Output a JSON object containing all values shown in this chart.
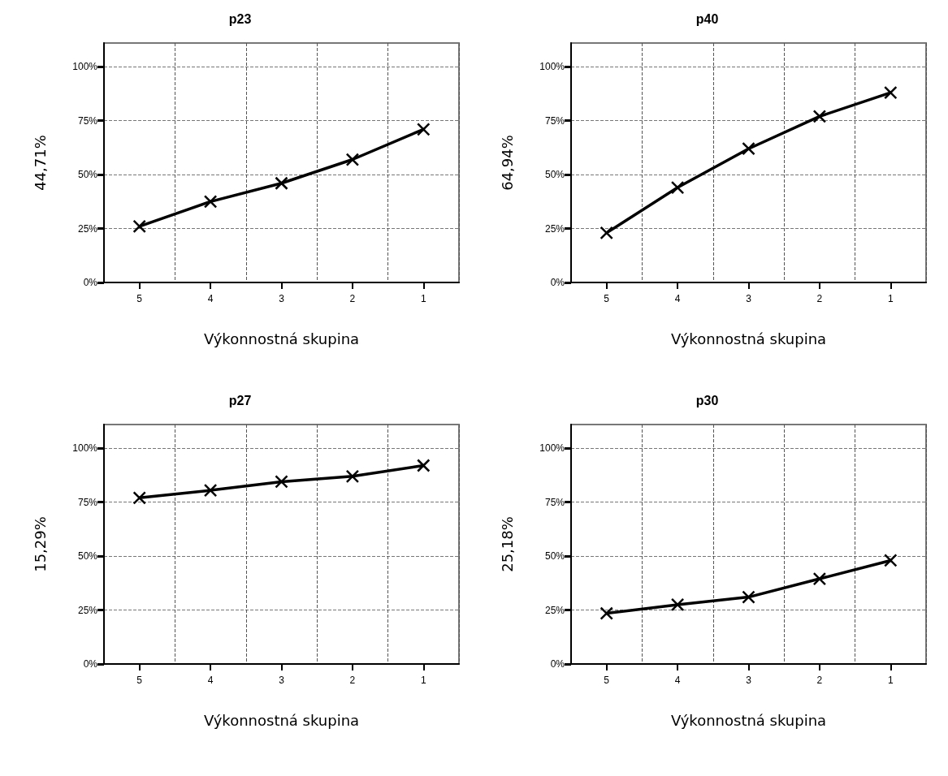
{
  "chart_data": [
    {
      "type": "line",
      "title": "p23",
      "xlabel": "Výkonnostná skupina",
      "ylabel": "44,71%",
      "categories": [
        "5",
        "4",
        "3",
        "2",
        "1"
      ],
      "series": [
        {
          "color": "#000000",
          "values": [
            26,
            37.5,
            46,
            57,
            71
          ]
        }
      ],
      "ylim": [
        0,
        111
      ],
      "yticks": [
        {
          "value": 0,
          "label": "0%"
        },
        {
          "value": 25,
          "label": "25%"
        },
        {
          "value": 50,
          "label": "50%"
        },
        {
          "value": 75,
          "label": "75%"
        },
        {
          "value": 100,
          "label": "100%"
        }
      ],
      "grid": true,
      "marker": "cross",
      "line_style": "solid"
    },
    {
      "type": "line",
      "title": "p40",
      "xlabel": "Výkonnostná skupina",
      "ylabel": "64,94%",
      "categories": [
        "5",
        "4",
        "3",
        "2",
        "1"
      ],
      "series": [
        {
          "color": "#000000",
          "values": [
            23,
            44,
            62,
            77,
            88
          ]
        }
      ],
      "ylim": [
        0,
        111
      ],
      "yticks": [
        {
          "value": 0,
          "label": "0%"
        },
        {
          "value": 25,
          "label": "25%"
        },
        {
          "value": 50,
          "label": "50%"
        },
        {
          "value": 75,
          "label": "75%"
        },
        {
          "value": 100,
          "label": "100%"
        }
      ],
      "grid": true,
      "marker": "cross",
      "line_style": "solid"
    },
    {
      "type": "line",
      "title": "p27",
      "xlabel": "Výkonnostná skupina",
      "ylabel": "15,29%",
      "categories": [
        "5",
        "4",
        "3",
        "2",
        "1"
      ],
      "series": [
        {
          "color": "#000000",
          "values": [
            77,
            80.5,
            84.5,
            87,
            92
          ]
        }
      ],
      "ylim": [
        0,
        111
      ],
      "yticks": [
        {
          "value": 0,
          "label": "0%"
        },
        {
          "value": 25,
          "label": "25%"
        },
        {
          "value": 50,
          "label": "50%"
        },
        {
          "value": 75,
          "label": "75%"
        },
        {
          "value": 100,
          "label": "100%"
        }
      ],
      "grid": true,
      "marker": "cross",
      "line_style": "solid"
    },
    {
      "type": "line",
      "title": "p30",
      "xlabel": "Výkonnostná skupina",
      "ylabel": "25,18%",
      "categories": [
        "5",
        "4",
        "3",
        "2",
        "1"
      ],
      "series": [
        {
          "color": "#000000",
          "values": [
            23.5,
            27.5,
            31,
            39.5,
            48
          ]
        }
      ],
      "ylim": [
        0,
        111
      ],
      "yticks": [
        {
          "value": 0,
          "label": "0%"
        },
        {
          "value": 25,
          "label": "25%"
        },
        {
          "value": 50,
          "label": "50%"
        },
        {
          "value": 75,
          "label": "75%"
        },
        {
          "value": 100,
          "label": "100%"
        }
      ],
      "grid": true,
      "marker": "cross",
      "line_style": "solid"
    }
  ]
}
